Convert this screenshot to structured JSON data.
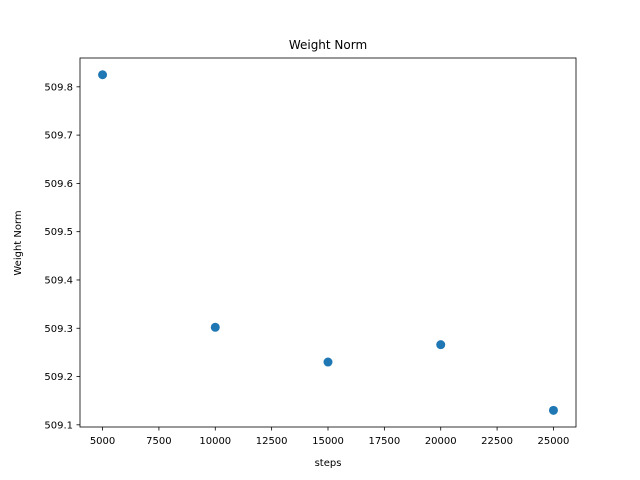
{
  "chart_data": {
    "type": "scatter",
    "title": "Weight Norm",
    "xlabel": "steps",
    "ylabel": "Weight Norm",
    "xlim": [
      4000,
      26000
    ],
    "ylim": [
      509.0955,
      509.8597
    ],
    "xticks": [
      5000,
      7500,
      10000,
      12500,
      15000,
      17500,
      20000,
      22500,
      25000
    ],
    "yticks": [
      509.1,
      509.2,
      509.3,
      509.4,
      509.5,
      509.6,
      509.7,
      509.8
    ],
    "xtick_labels": [
      "5000",
      "7500",
      "10000",
      "12500",
      "15000",
      "17500",
      "20000",
      "22500",
      "25000"
    ],
    "ytick_labels": [
      "509.1",
      "509.2",
      "509.3",
      "509.4",
      "509.5",
      "509.6",
      "509.7",
      "509.8"
    ],
    "grid": false,
    "color": "#1f77b4",
    "points": [
      {
        "x": 5000,
        "y": 509.825
      },
      {
        "x": 10000,
        "y": 509.302
      },
      {
        "x": 15000,
        "y": 509.23
      },
      {
        "x": 20000,
        "y": 509.266
      },
      {
        "x": 25000,
        "y": 509.13
      }
    ]
  }
}
